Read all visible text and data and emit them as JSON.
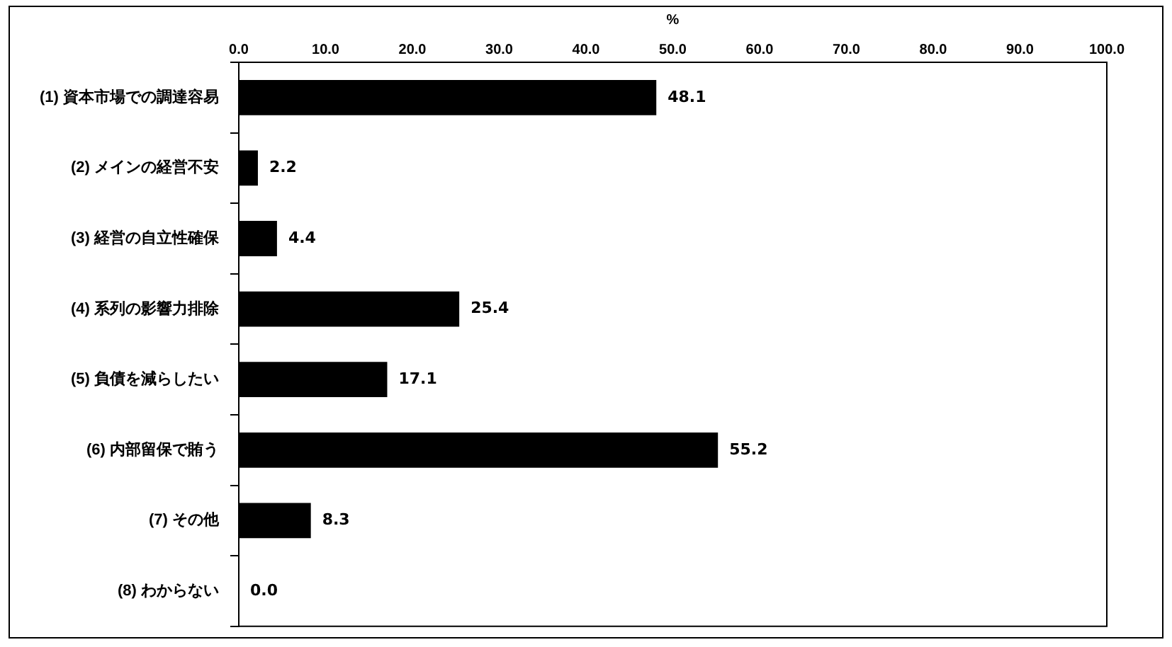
{
  "chart_data": {
    "type": "bar",
    "orientation": "horizontal",
    "xlabel": "%",
    "categories": [
      "(1) 資本市場での調達容易",
      "(2) メインの経営不安",
      "(3) 経営の自立性確保",
      "(4) 系列の影響力排除",
      "(5) 負債を減らしたい",
      "(6) 内部留保で賄う",
      "(7) その他",
      "(8) わからない"
    ],
    "values": [
      48.1,
      2.2,
      4.4,
      25.4,
      17.1,
      55.2,
      8.3,
      0.0
    ],
    "value_labels": [
      "48.1",
      "2.2",
      "4.4",
      "25.4",
      "17.1",
      "55.2",
      "8.3",
      "0.0"
    ],
    "color": "#000000",
    "xlim": [
      0,
      100
    ],
    "xticks": [
      {
        "value": 0,
        "label": "0.0"
      },
      {
        "value": 10,
        "label": "10.0"
      },
      {
        "value": 20,
        "label": "20.0"
      },
      {
        "value": 30,
        "label": "30.0"
      },
      {
        "value": 40,
        "label": "40.0"
      },
      {
        "value": 50,
        "label": "50.0"
      },
      {
        "value": 60,
        "label": "60.0"
      },
      {
        "value": 70,
        "label": "70.0"
      },
      {
        "value": 80,
        "label": "80.0"
      },
      {
        "value": 90,
        "label": "90.0"
      },
      {
        "value": 100,
        "label": "100.0"
      }
    ],
    "grid": false,
    "legend": false
  }
}
